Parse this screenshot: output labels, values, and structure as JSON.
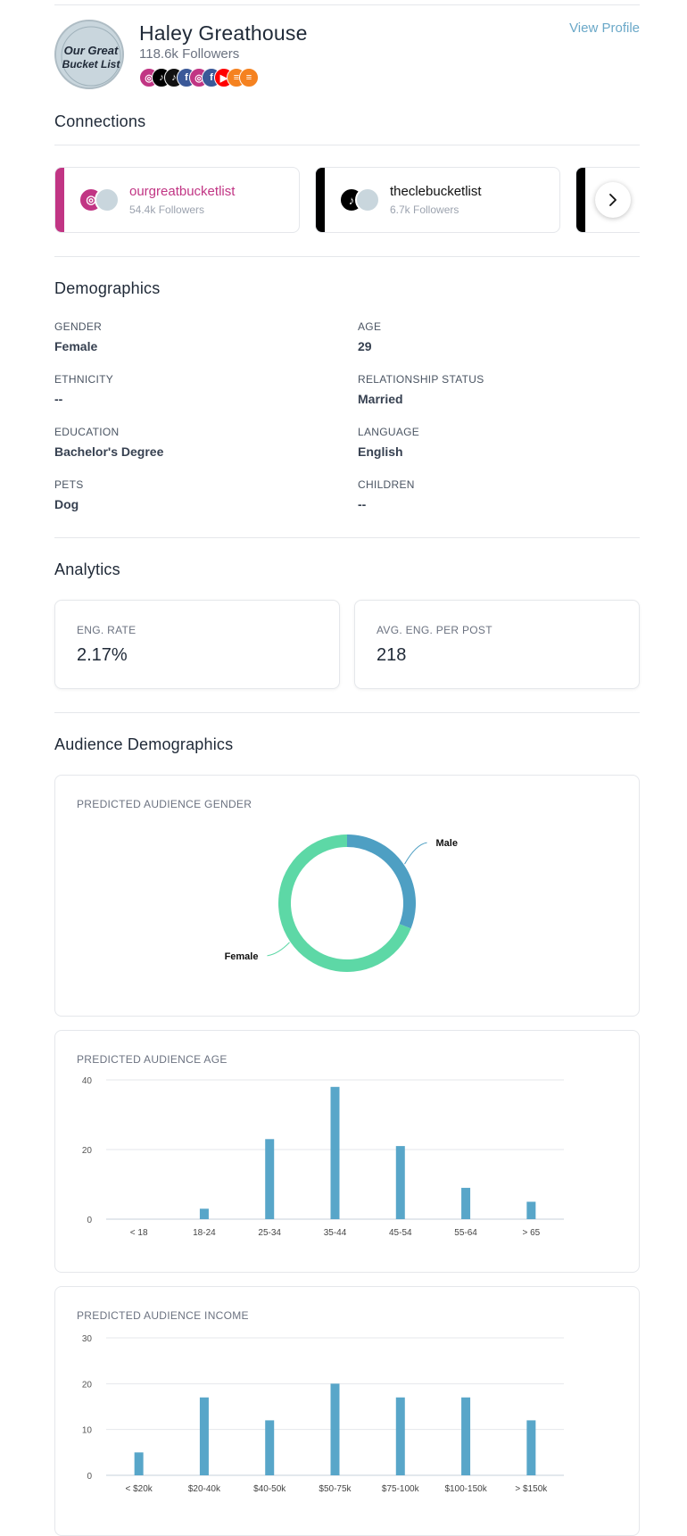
{
  "profile": {
    "name": "Haley Greathouse",
    "followers": "118.6k Followers",
    "view_profile": "View Profile",
    "avatar_text_line1": "Our Great",
    "avatar_text_line2": "Bucket List",
    "socials": [
      {
        "icon": "instagram-icon",
        "color": "#c13584",
        "glyph": "◎"
      },
      {
        "icon": "tiktok-icon",
        "color": "#000000",
        "glyph": "♪"
      },
      {
        "icon": "tiktok-icon",
        "color": "#111111",
        "glyph": "♪"
      },
      {
        "icon": "facebook-icon",
        "color": "#3b5998",
        "glyph": "f"
      },
      {
        "icon": "instagram-icon",
        "color": "#c13584",
        "glyph": "◎"
      },
      {
        "icon": "facebook-icon",
        "color": "#3b5998",
        "glyph": "f"
      },
      {
        "icon": "youtube-icon",
        "color": "#ff0000",
        "glyph": "▶"
      },
      {
        "icon": "blog-icon",
        "color": "#f58220",
        "glyph": "≡"
      },
      {
        "icon": "blog-icon",
        "color": "#f58220",
        "glyph": "≡"
      }
    ]
  },
  "connections": {
    "title": "Connections",
    "cards": [
      {
        "name": "ourgreatbucketlist",
        "followers": "54.4k Followers",
        "accent": "#c13584",
        "platform_icon": "instagram-icon",
        "glyph": "◎"
      },
      {
        "name": "theclebucketlist",
        "followers": "6.7k Followers",
        "accent": "#000000",
        "platform_icon": "tiktok-icon",
        "glyph": "♪"
      }
    ]
  },
  "demographics": {
    "title": "Demographics",
    "fields": [
      {
        "label": "GENDER",
        "value": "Female"
      },
      {
        "label": "AGE",
        "value": "29"
      },
      {
        "label": "ETHNICITY",
        "value": "--"
      },
      {
        "label": "RELATIONSHIP STATUS",
        "value": "Married"
      },
      {
        "label": "EDUCATION",
        "value": "Bachelor's Degree"
      },
      {
        "label": "LANGUAGE",
        "value": "English"
      },
      {
        "label": "PETS",
        "value": "Dog"
      },
      {
        "label": "CHILDREN",
        "value": "--"
      }
    ]
  },
  "analytics": {
    "title": "Analytics",
    "eng_rate_label": "ENG. RATE",
    "eng_rate_value": "2.17%",
    "avg_eng_label": "AVG. ENG. PER POST",
    "avg_eng_value": "218"
  },
  "audience": {
    "title": "Audience Demographics",
    "gender_title": "PREDICTED AUDIENCE GENDER",
    "age_title": "PREDICTED AUDIENCE AGE",
    "income_title": "PREDICTED AUDIENCE INCOME"
  },
  "colors": {
    "bar": "#58a6c9",
    "male": "#4e9fc3",
    "female": "#5dd8a6",
    "grid": "#e5e7eb"
  },
  "chart_data": [
    {
      "type": "pie",
      "title": "PREDICTED AUDIENCE GENDER",
      "categories": [
        "Male",
        "Female"
      ],
      "values": [
        31,
        69
      ]
    },
    {
      "type": "bar",
      "title": "PREDICTED AUDIENCE AGE",
      "categories": [
        "< 18",
        "18-24",
        "25-34",
        "35-44",
        "45-54",
        "55-64",
        "> 65"
      ],
      "values": [
        0,
        3,
        23,
        38,
        21,
        9,
        5
      ],
      "yticks": [
        0,
        20,
        40
      ],
      "ylim": [
        0,
        40
      ],
      "grid": true
    },
    {
      "type": "bar",
      "title": "PREDICTED AUDIENCE INCOME",
      "categories": [
        "< $20k",
        "$20-40k",
        "$40-50k",
        "$50-75k",
        "$75-100k",
        "$100-150k",
        "> $150k"
      ],
      "values": [
        5,
        17,
        12,
        20,
        17,
        17,
        12
      ],
      "yticks": [
        0,
        10,
        20,
        30
      ],
      "ylim": [
        0,
        30
      ],
      "grid": true
    }
  ]
}
